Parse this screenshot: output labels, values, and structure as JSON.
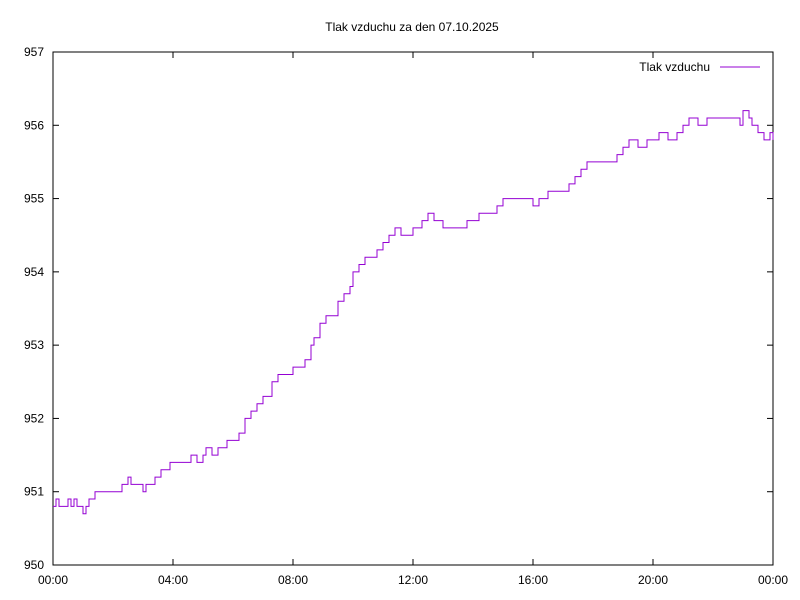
{
  "chart_data": {
    "type": "line",
    "title": "Tlak vzduchu za den 07.10.2025",
    "xlabel": "",
    "ylabel": "",
    "ylim": [
      950,
      957
    ],
    "xlim_hours": [
      0,
      24
    ],
    "yticks": [
      "950",
      "951",
      "952",
      "953",
      "954",
      "955",
      "956",
      "957"
    ],
    "xticks": [
      "00:00",
      "04:00",
      "08:00",
      "12:00",
      "16:00",
      "20:00",
      "00:00"
    ],
    "legend_position": "top-right",
    "grid": false,
    "series": [
      {
        "name": "Tlak vzduchu",
        "color": "#9400d3",
        "x_hours": [
          0.0,
          0.1,
          0.2,
          0.3,
          0.5,
          0.6,
          0.7,
          0.8,
          0.9,
          1.0,
          1.1,
          1.2,
          1.3,
          1.4,
          1.5,
          1.6,
          2.0,
          2.3,
          2.4,
          2.5,
          2.6,
          2.8,
          3.0,
          3.1,
          3.2,
          3.4,
          3.6,
          3.7,
          3.9,
          4.0,
          4.2,
          4.4,
          4.6,
          4.8,
          5.0,
          5.1,
          5.3,
          5.5,
          5.8,
          6.0,
          6.2,
          6.4,
          6.6,
          6.8,
          7.0,
          7.3,
          7.5,
          7.8,
          8.0,
          8.2,
          8.4,
          8.6,
          8.7,
          8.9,
          9.1,
          9.3,
          9.5,
          9.7,
          9.9,
          10.0,
          10.2,
          10.4,
          10.6,
          10.8,
          11.0,
          11.2,
          11.4,
          11.6,
          11.8,
          12.0,
          12.3,
          12.5,
          12.7,
          13.0,
          13.3,
          13.6,
          13.8,
          14.0,
          14.2,
          14.5,
          14.8,
          15.0,
          15.2,
          15.5,
          15.8,
          16.0,
          16.2,
          16.5,
          16.8,
          17.0,
          17.2,
          17.4,
          17.6,
          17.8,
          18.0,
          18.5,
          18.8,
          19.0,
          19.2,
          19.5,
          19.8,
          20.0,
          20.2,
          20.5,
          20.8,
          21.0,
          21.2,
          21.5,
          21.8,
          22.0,
          22.5,
          22.7,
          22.9,
          23.0,
          23.2,
          23.3,
          23.5,
          23.7,
          23.9,
          24.0
        ],
        "values": [
          950.8,
          950.9,
          950.8,
          950.8,
          950.9,
          950.8,
          950.9,
          950.8,
          950.8,
          950.7,
          950.8,
          950.9,
          950.9,
          951.0,
          951.0,
          951.0,
          951.0,
          951.1,
          951.1,
          951.2,
          951.1,
          951.1,
          951.0,
          951.1,
          951.1,
          951.2,
          951.3,
          951.3,
          951.4,
          951.4,
          951.4,
          951.4,
          951.5,
          951.4,
          951.5,
          951.6,
          951.5,
          951.6,
          951.7,
          951.7,
          951.8,
          952.0,
          952.1,
          952.2,
          952.3,
          952.5,
          952.6,
          952.6,
          952.7,
          952.7,
          952.8,
          953.0,
          953.1,
          953.3,
          953.4,
          953.4,
          953.6,
          953.7,
          953.8,
          954.0,
          954.1,
          954.2,
          954.2,
          954.3,
          954.4,
          954.5,
          954.6,
          954.5,
          954.5,
          954.6,
          954.7,
          954.8,
          954.7,
          954.6,
          954.6,
          954.6,
          954.7,
          954.7,
          954.8,
          954.8,
          954.9,
          955.0,
          955.0,
          955.0,
          955.0,
          954.9,
          955.0,
          955.1,
          955.1,
          955.1,
          955.2,
          955.3,
          955.4,
          955.5,
          955.5,
          955.5,
          955.6,
          955.7,
          955.8,
          955.7,
          955.8,
          955.8,
          955.9,
          955.8,
          955.9,
          956.0,
          956.1,
          956.0,
          956.1,
          956.1,
          956.1,
          956.1,
          956.0,
          956.2,
          956.1,
          956.0,
          955.9,
          955.8,
          955.9,
          955.8
        ]
      }
    ]
  }
}
